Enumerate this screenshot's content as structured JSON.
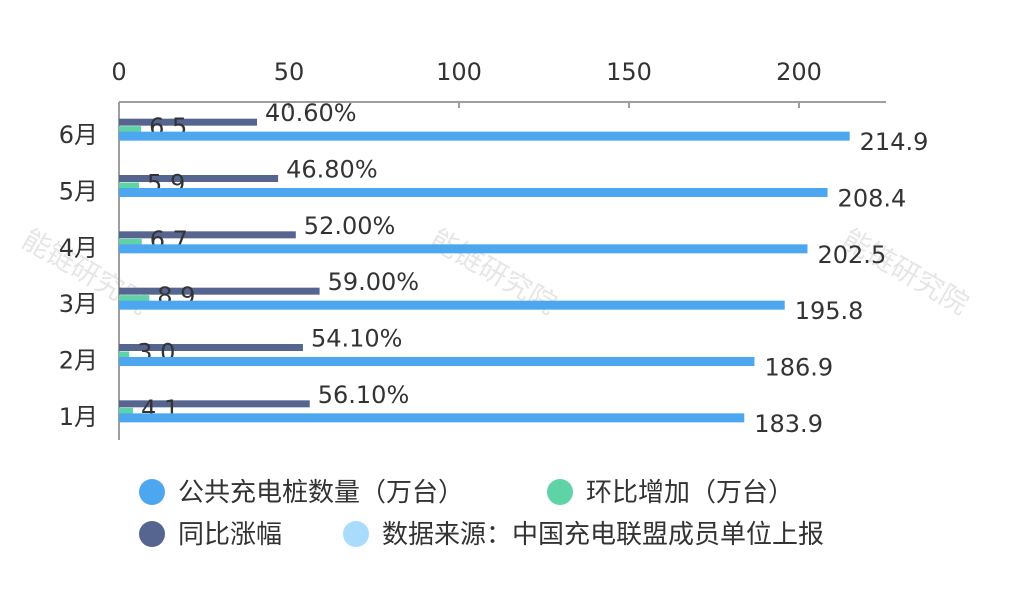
{
  "chart_data": {
    "type": "bar",
    "orientation": "horizontal",
    "categories": [
      "1月",
      "2月",
      "3月",
      "4月",
      "5月",
      "6月"
    ],
    "xlim": [
      0,
      225
    ],
    "xticks": [
      0,
      50,
      100,
      150,
      200
    ],
    "series": [
      {
        "name": "同比涨幅",
        "values": [
          56.1,
          54.1,
          59.0,
          52.0,
          46.8,
          40.6
        ],
        "labels": [
          "56.10%",
          "54.10%",
          "59.00%",
          "52.00%",
          "46.80%",
          "40.60%"
        ],
        "color": "#56658f"
      },
      {
        "name": "环比增加（万台）",
        "values": [
          4.1,
          3.0,
          8.9,
          6.7,
          5.9,
          6.5
        ],
        "labels": [
          "4.1",
          "3.0",
          "8.9",
          "6.7",
          "5.9",
          "6.5"
        ],
        "color": "#5dd3a6"
      },
      {
        "name": "公共充电桩数量（万台）",
        "values": [
          183.9,
          186.9,
          195.8,
          202.5,
          208.4,
          214.9
        ],
        "labels": [
          "183.9",
          "186.9",
          "195.8",
          "202.5",
          "208.4",
          "214.9"
        ],
        "color": "#4da7f0"
      }
    ],
    "legend": {
      "placement": "bottom",
      "items": [
        {
          "label": "公共充电桩数量（万台）",
          "color": "#4da7f0"
        },
        {
          "label": "环比增加（万台）",
          "color": "#5dd3a6"
        },
        {
          "label": "同比涨幅",
          "color": "#56658f"
        },
        {
          "label": "数据来源：中国充电联盟成员单位上报",
          "color": "#a9dcfb"
        }
      ]
    },
    "grid": false
  },
  "watermark": "能链研究院"
}
